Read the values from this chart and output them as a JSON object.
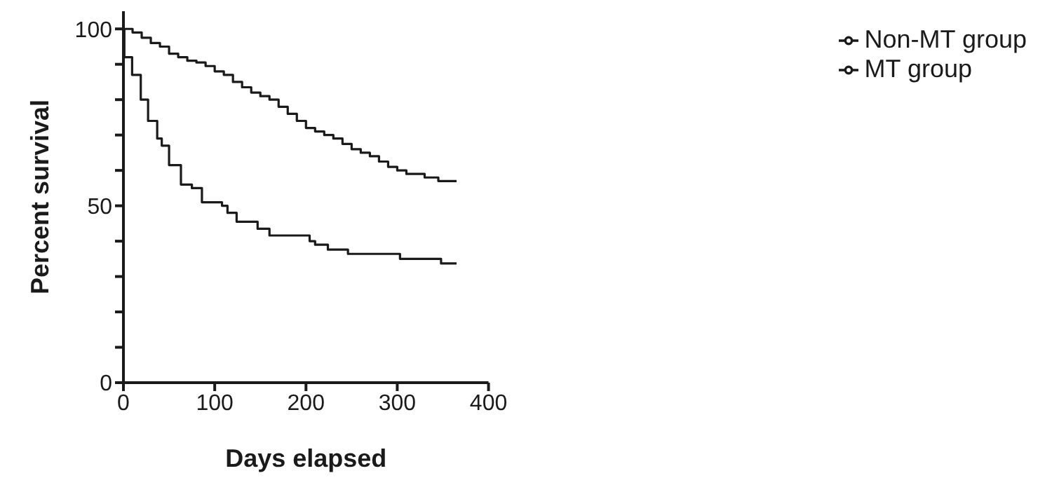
{
  "chart_data": {
    "type": "step",
    "xlabel": "Days elapsed",
    "ylabel": "Percent survival",
    "xlim": [
      0,
      400
    ],
    "xticks": [
      0,
      100,
      200,
      300,
      400
    ],
    "ylim": [
      0,
      105
    ],
    "yticks": [
      0,
      {
        "value": 10,
        "label": null
      },
      {
        "value": 20,
        "label": null
      },
      {
        "value": 30,
        "label": null
      },
      {
        "value": 40,
        "label": null
      },
      50,
      {
        "value": 60,
        "label": null
      },
      {
        "value": 70,
        "label": null
      },
      {
        "value": 80,
        "label": null
      },
      {
        "value": 90,
        "label": null
      },
      100
    ],
    "legend": "top right",
    "grid": false,
    "series": [
      {
        "name": "Non-MT group",
        "color": "#1a1a1a",
        "x": [
          0,
          10,
          20,
          30,
          40,
          50,
          60,
          70,
          80,
          90,
          100,
          110,
          120,
          130,
          140,
          150,
          160,
          170,
          180,
          190,
          200,
          210,
          220,
          230,
          240,
          250,
          260,
          270,
          280,
          290,
          300,
          310,
          330,
          345,
          365
        ],
        "values": [
          100,
          99,
          97.5,
          96,
          95,
          93,
          92,
          91,
          90.5,
          89.5,
          88,
          87,
          85,
          83.5,
          82,
          81,
          80,
          78,
          76,
          74,
          72,
          71,
          70,
          69,
          67.5,
          66,
          65,
          64,
          62.5,
          61,
          60,
          59,
          58,
          57,
          57
        ]
      },
      {
        "name": "MT group",
        "color": "#1a1a1a",
        "x": [
          0,
          1,
          9.5,
          19,
          27,
          37,
          42,
          50,
          63,
          75,
          86,
          108,
          114,
          124,
          147,
          160,
          204,
          210,
          224,
          246,
          303,
          348,
          365
        ],
        "values": [
          100,
          92,
          87,
          80,
          74,
          69,
          67,
          61.5,
          56,
          55,
          51,
          50,
          48,
          45.5,
          43.5,
          41.6,
          40,
          39,
          37.6,
          36.4,
          35,
          33.7,
          33.7
        ]
      }
    ]
  }
}
